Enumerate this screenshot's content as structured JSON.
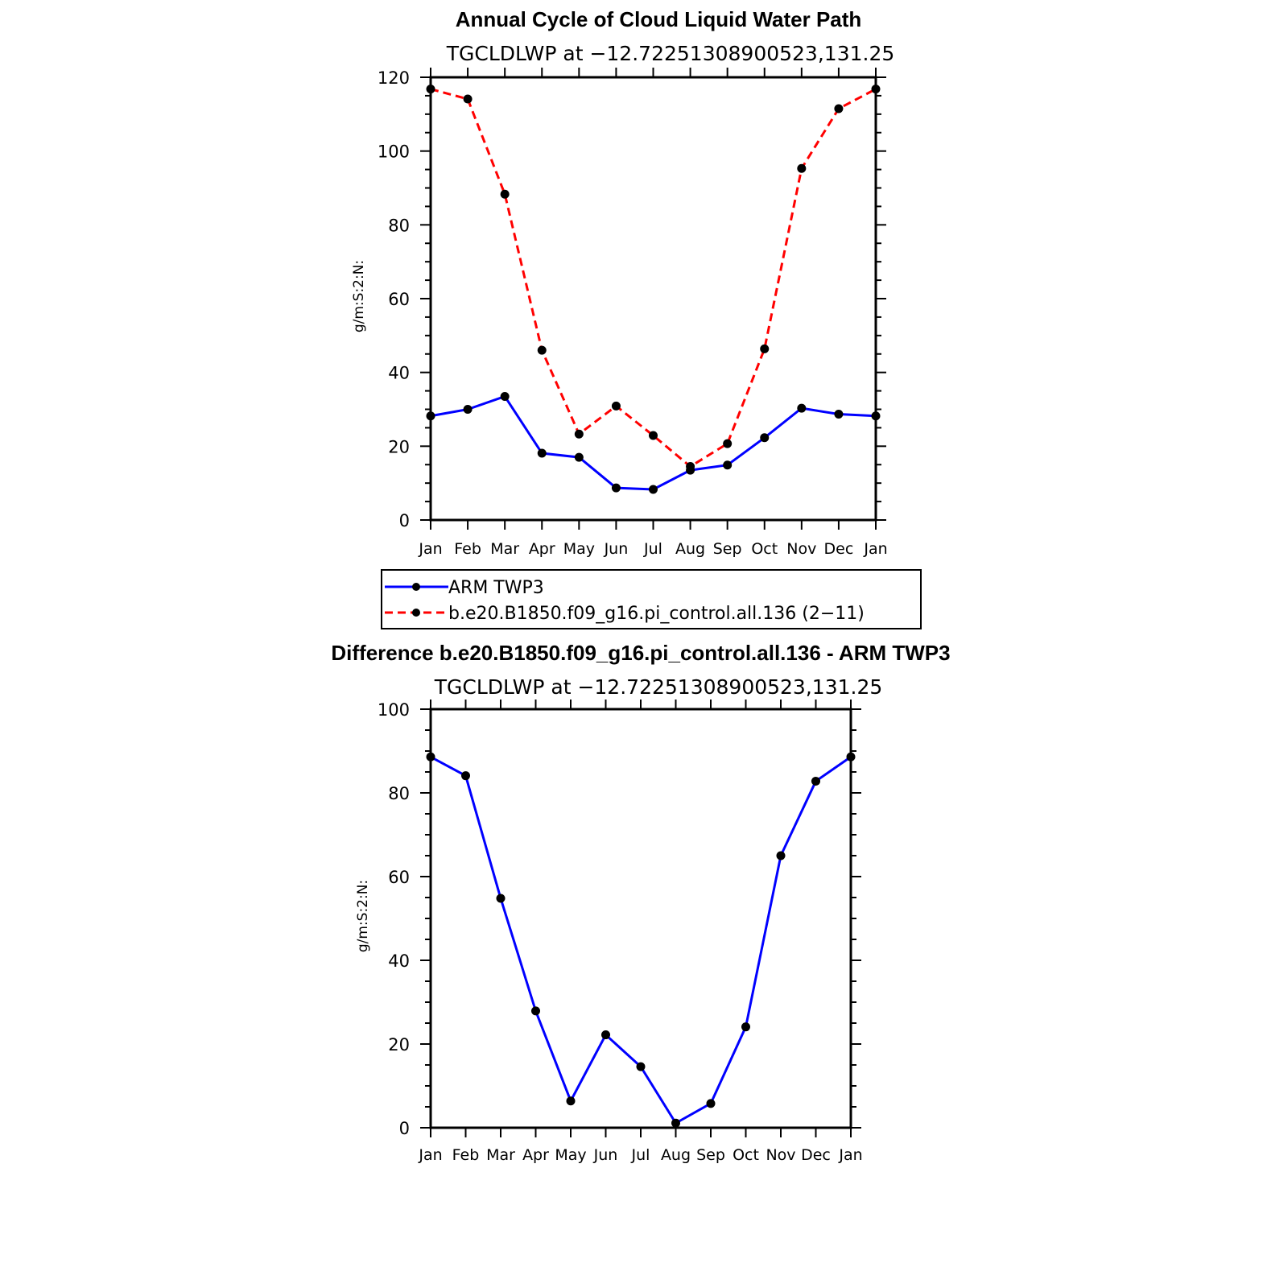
{
  "chart_data": [
    {
      "type": "line",
      "title": "Annual Cycle of Cloud Liquid Water Path",
      "subtitle": "TGCLDLWP  at −12.72251308900523,131.25",
      "xlabel": "",
      "ylabel": "g/m:S:2:N:",
      "categories": [
        "Jan",
        "Feb",
        "Mar",
        "Apr",
        "May",
        "Jun",
        "Jul",
        "Aug",
        "Sep",
        "Oct",
        "Nov",
        "Dec",
        "Jan"
      ],
      "ylim": [
        0,
        120
      ],
      "yticks": [
        0,
        20,
        40,
        60,
        80,
        100,
        120
      ],
      "series": [
        {
          "name": "ARM  TWP3",
          "color": "#0000ff",
          "style": "solid",
          "values": [
            28.2,
            30.0,
            33.5,
            18.1,
            17.0,
            8.7,
            8.3,
            13.5,
            14.9,
            22.3,
            30.3,
            28.7,
            28.2
          ]
        },
        {
          "name": "b.e20.B1850.f09_g16.pi_control.all.136  (2−11)",
          "color": "#ff0000",
          "style": "dashed",
          "values": [
            116.8,
            114.1,
            88.3,
            46.0,
            23.3,
            30.9,
            22.9,
            14.5,
            20.7,
            46.4,
            95.3,
            111.5,
            116.8
          ]
        }
      ],
      "legend_position": "below"
    },
    {
      "type": "line",
      "title": "Difference b.e20.B1850.f09_g16.pi_control.all.136 - ARM TWP3",
      "subtitle": "TGCLDLWP  at −12.72251308900523,131.25",
      "xlabel": "",
      "ylabel": "g/m:S:2:N:",
      "categories": [
        "Jan",
        "Feb",
        "Mar",
        "Apr",
        "May",
        "Jun",
        "Jul",
        "Aug",
        "Sep",
        "Oct",
        "Nov",
        "Dec",
        "Jan"
      ],
      "ylim": [
        0,
        100
      ],
      "yticks": [
        0,
        20,
        40,
        60,
        80,
        100
      ],
      "series": [
        {
          "name": "Difference",
          "color": "#0000ff",
          "style": "solid",
          "values": [
            88.6,
            84.1,
            54.8,
            27.9,
            6.4,
            22.2,
            14.6,
            1.1,
            5.8,
            24.1,
            65.0,
            82.8,
            88.6
          ]
        }
      ]
    }
  ]
}
